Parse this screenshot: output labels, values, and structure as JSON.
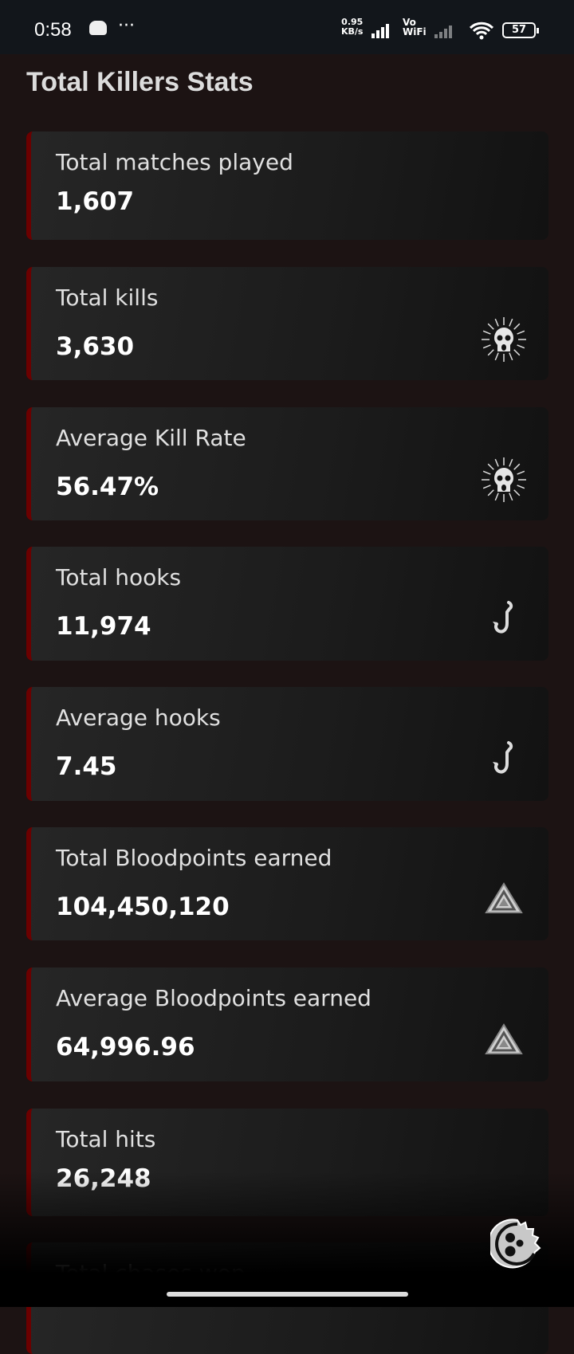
{
  "status_bar": {
    "time": "0:58",
    "more": "···",
    "speed": "0.95",
    "speed_unit": "KB/s",
    "vo": "Vo",
    "wifi": "WiFi",
    "battery": "57"
  },
  "page_title": "Total Killers Stats",
  "stats": [
    {
      "label": "Total matches played",
      "value": "1,607",
      "icon": "none"
    },
    {
      "label": "Total kills",
      "value": "3,630",
      "icon": "skull-icon"
    },
    {
      "label": "Average Kill Rate",
      "value": "56.47%",
      "icon": "skull-icon"
    },
    {
      "label": "Total hooks",
      "value": "11,974",
      "icon": "hook-icon"
    },
    {
      "label": "Average hooks",
      "value": "7.45",
      "icon": "hook-icon"
    },
    {
      "label": "Total Bloodpoints earned",
      "value": "104,450,120",
      "icon": "bloodpoints-icon"
    },
    {
      "label": "Average Bloodpoints earned",
      "value": "64,996.96",
      "icon": "bloodpoints-icon"
    },
    {
      "label": "Total hits",
      "value": "26,248",
      "icon": "none"
    },
    {
      "label": "Total chases won",
      "value": "",
      "icon": "none"
    }
  ],
  "colors": {
    "accent": "#6b0000",
    "background": "#1c1313"
  }
}
